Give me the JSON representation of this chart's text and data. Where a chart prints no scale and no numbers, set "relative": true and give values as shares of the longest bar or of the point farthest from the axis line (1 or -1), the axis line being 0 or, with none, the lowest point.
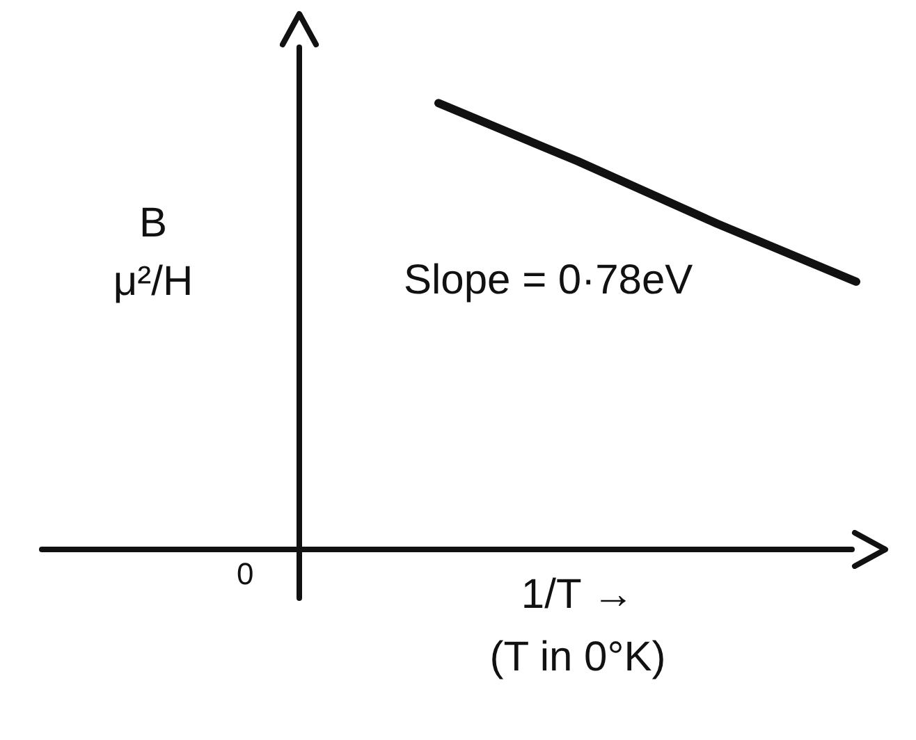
{
  "chart_data": {
    "type": "line",
    "relative": true,
    "ylabel": "B μ²/H",
    "xlabel": "1/T →\n(T in 0°K)",
    "categories": [
      null,
      null,
      null,
      null,
      null
    ],
    "series": [
      {
        "color": "#111111",
        "values": [
          null,
          1,
          0.87,
          0.73,
          0.6
        ]
      }
    ],
    "annotations": [
      "Slope = 0·78eV",
      "0"
    ],
    "marker": "none",
    "legend": false,
    "tick_labels": false
  }
}
